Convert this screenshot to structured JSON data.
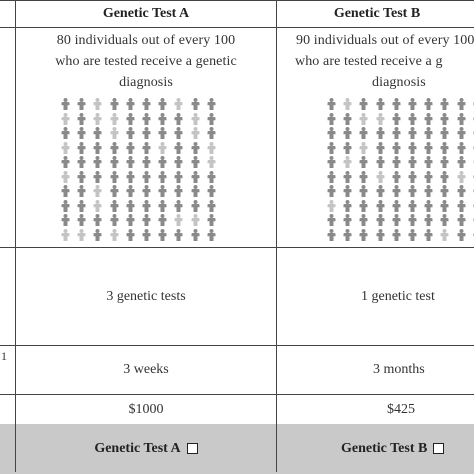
{
  "table": {
    "columns": [
      {
        "header": "Genetic Test A",
        "description_line1": "80 individuals out of every 100",
        "description_line2": "who are tested receive a genetic",
        "description_line3": "diagnosis",
        "diagnosed_fraction": 0.8,
        "tests": "3 genetic tests",
        "time": "3 weeks",
        "cost": "$1000",
        "choice_label": "Genetic Test A"
      },
      {
        "header": "Genetic Test B",
        "description_line1": "90 individuals out of every 100",
        "description_line2": "who are tested receive a g",
        "description_line3": "diagnosis",
        "diagnosed_fraction": 0.9,
        "tests": "1 genetic test",
        "time": "3 months",
        "cost": "$425",
        "choice_label": "Genetic Test B"
      }
    ],
    "row_stub": "1"
  },
  "colors": {
    "diagnosed": "#8a8a8a",
    "not_diagnosed": "#c4c4c4",
    "footer": "#c9c9c9"
  }
}
